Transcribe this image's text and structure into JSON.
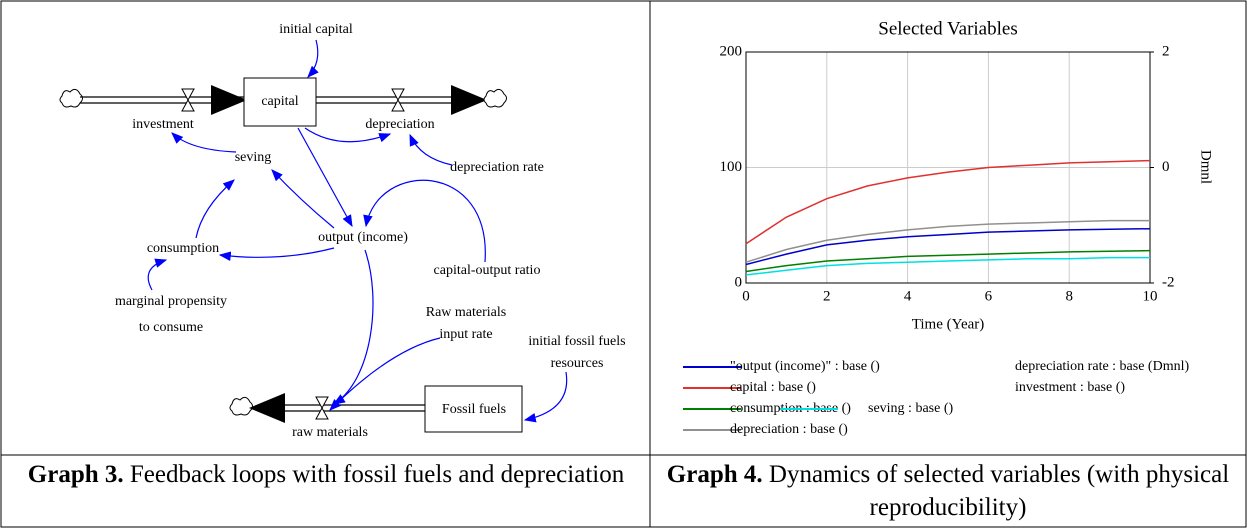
{
  "diagram": {
    "nodes": [
      {
        "label": "initial capital"
      },
      {
        "label": "capital"
      },
      {
        "label": "investment"
      },
      {
        "label": "depreciation"
      },
      {
        "label": "depreciation rate"
      },
      {
        "label": "seving"
      },
      {
        "label": "output (income)"
      },
      {
        "label": "consumption"
      },
      {
        "label": "capital-output ratio"
      },
      {
        "lines": [
          "marginal propensity",
          "to consume"
        ]
      },
      {
        "lines": [
          "Raw materials",
          "input rate"
        ]
      },
      {
        "lines": [
          "initial fossil fuels",
          "resources"
        ]
      },
      {
        "label": "Fossil fuels"
      },
      {
        "label": "raw materials"
      }
    ]
  },
  "captions": [
    {
      "label": "Graph 3.",
      "text": "Feedback loops with fossil fuels and depreciation"
    },
    {
      "label": "Graph 4.",
      "text": "Dynamics of selected variables (with physical reproducibility)"
    }
  ],
  "chart_data": {
    "type": "line",
    "title": "Selected Variables",
    "x_label": "Time (Year)",
    "y2_label": "Dmnl",
    "x": [
      0,
      1,
      2,
      3,
      4,
      5,
      6,
      7,
      8,
      9,
      10
    ],
    "xlim": [
      0,
      10
    ],
    "xticks": [
      0,
      2,
      4,
      6,
      8,
      10
    ],
    "ylim": [
      0,
      200
    ],
    "yticks": [
      0,
      100,
      200
    ],
    "y2lim": [
      -2,
      2
    ],
    "y2ticks": [
      -2,
      0,
      2
    ],
    "grid": true,
    "series": [
      {
        "name": "\"output (income)\" : base ()",
        "color": "#0000cc",
        "values": [
          16,
          25,
          33,
          37,
          40,
          42,
          44,
          45,
          46,
          46.5,
          47
        ]
      },
      {
        "name": "capital : base ()",
        "color": "#e03030",
        "values": [
          34,
          57,
          73,
          84,
          91,
          96,
          100,
          102,
          104,
          105,
          106
        ]
      },
      {
        "name": "consumption : base ()",
        "color": "#008000",
        "values": [
          10,
          15,
          19,
          21,
          23,
          24,
          25,
          26,
          27,
          27.5,
          28
        ]
      },
      {
        "name": "depreciation : base ()",
        "color": "#909090",
        "values": [
          18,
          29,
          37,
          42,
          46,
          49,
          51,
          52,
          53,
          54,
          54
        ]
      },
      {
        "name": "depreciation rate : base (Dmnl)",
        "axis": "y2",
        "values": [
          null,
          null,
          null,
          null,
          null,
          null,
          null,
          null,
          null,
          null,
          null
        ]
      },
      {
        "name": "investment : base ()",
        "values": [
          null,
          null,
          null,
          null,
          null,
          null,
          null,
          null,
          null,
          null,
          null
        ]
      },
      {
        "name": "seving : base ()",
        "color": "#00e0e0",
        "values": [
          7,
          11,
          15,
          17,
          18,
          19,
          20,
          21,
          21,
          22,
          22
        ]
      }
    ]
  }
}
